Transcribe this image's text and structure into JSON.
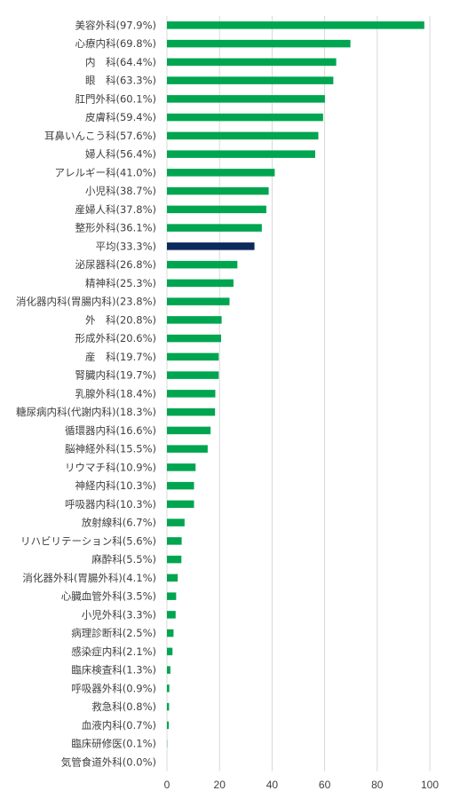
{
  "chart_data": {
    "type": "bar",
    "orientation": "horizontal",
    "title": "",
    "xlabel": "",
    "ylabel": "",
    "xlim": [
      0,
      100
    ],
    "x_ticks": [
      "0",
      "20",
      "40",
      "60",
      "80",
      "100"
    ],
    "grid": true,
    "colors": {
      "default": "#00a550",
      "highlight": "#0d2a5c"
    },
    "highlight_category": "平均(33.3%)",
    "categories": [
      "美容外科(97.9%)",
      "心療内科(69.8%)",
      "内　科(64.4%)",
      "眼　科(63.3%)",
      "肛門外科(60.1%)",
      "皮膚科(59.4%)",
      "耳鼻いんこう科(57.6%)",
      "婦人科(56.4%)",
      "アレルギー科(41.0%)",
      "小児科(38.7%)",
      "産婦人科(37.8%)",
      "整形外科(36.1%)",
      "平均(33.3%)",
      "泌尿器科(26.8%)",
      "精神科(25.3%)",
      "消化器内科(胃腸内科)(23.8%)",
      "外　科(20.8%)",
      "形成外科(20.6%)",
      "産　科(19.7%)",
      "腎臓内科(19.7%)",
      "乳腺外科(18.4%)",
      "糖尿病内科(代謝内科)(18.3%)",
      "循環器内科(16.6%)",
      "脳神経外科(15.5%)",
      "リウマチ科(10.9%)",
      "神経内科(10.3%)",
      "呼吸器内科(10.3%)",
      "放射線科(6.7%)",
      "リハビリテーション科(5.6%)",
      "麻酔科(5.5%)",
      "消化器外科(胃腸外科)(4.1%)",
      "心臓血管外科(3.5%)",
      "小児外科(3.3%)",
      "病理診断科(2.5%)",
      "感染症内科(2.1%)",
      "臨床検査科(1.3%)",
      "呼吸器外科(0.9%)",
      "救急科(0.8%)",
      "血液内科(0.7%)",
      "臨床研修医(0.1%)",
      "気管食道外科(0.0%)"
    ],
    "values": [
      97.9,
      69.8,
      64.4,
      63.3,
      60.1,
      59.4,
      57.6,
      56.4,
      41.0,
      38.7,
      37.8,
      36.1,
      33.3,
      26.8,
      25.3,
      23.8,
      20.8,
      20.6,
      19.7,
      19.7,
      18.4,
      18.3,
      16.6,
      15.5,
      10.9,
      10.3,
      10.3,
      6.7,
      5.6,
      5.5,
      4.1,
      3.5,
      3.3,
      2.5,
      2.1,
      1.3,
      0.9,
      0.8,
      0.7,
      0.1,
      0.0
    ]
  }
}
